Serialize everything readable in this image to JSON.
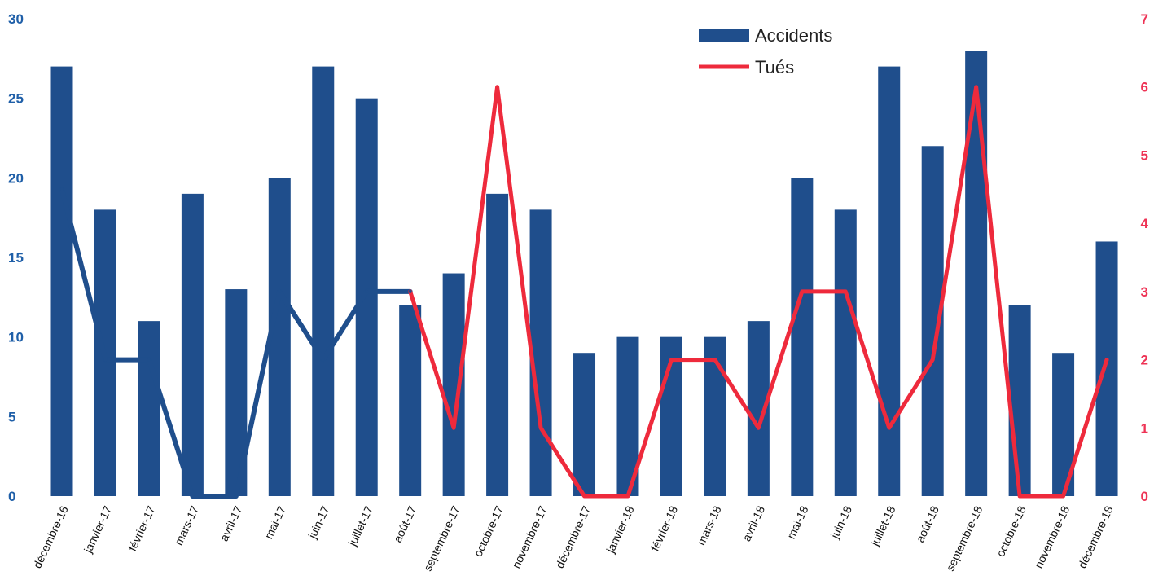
{
  "chart_data": {
    "type": "bar",
    "categories": [
      "décembre-16",
      "janvier-17",
      "février-17",
      "mars-17",
      "avril-17",
      "mai-17",
      "juin-17",
      "juillet-17",
      "août-17",
      "septembre-17",
      "octobre-17",
      "novembre-17",
      "décembre-17",
      "janvier-18",
      "février-18",
      "mars-18",
      "avril-18",
      "mai-18",
      "juin-18",
      "juillet-18",
      "août-18",
      "septembre-18",
      "octobre-18",
      "novembre-18",
      "décembre-18"
    ],
    "series": [
      {
        "name": "Accidents",
        "type": "bar",
        "axis": "left",
        "values": [
          27,
          18,
          11,
          19,
          13,
          20,
          27,
          25,
          12,
          14,
          19,
          18,
          9,
          10,
          10,
          10,
          11,
          20,
          18,
          27,
          22,
          28,
          12,
          9,
          16
        ]
      },
      {
        "name": "Tués",
        "type": "line",
        "axis": "right",
        "values": [
          4.5,
          2,
          2,
          0,
          0,
          3,
          2,
          3,
          3,
          1,
          6,
          1,
          0,
          0,
          2,
          2,
          1,
          3,
          3,
          1,
          2,
          6,
          0,
          0,
          2
        ]
      }
    ],
    "left_axis": {
      "ylim": [
        0,
        30
      ],
      "ticks": [
        "0",
        "5",
        "10",
        "15",
        "20",
        "25",
        "30"
      ]
    },
    "right_axis": {
      "ylim": [
        0,
        7
      ],
      "ticks": [
        "0",
        "1",
        "2",
        "3",
        "4",
        "5",
        "6",
        "7"
      ]
    },
    "legend_position": "top-center-right",
    "grid": false
  },
  "colors": {
    "bar": "#1f4e8c",
    "line": "#ee2a3c",
    "left_axis_text": "#1f5fa8",
    "right_axis_text": "#ee3355"
  }
}
